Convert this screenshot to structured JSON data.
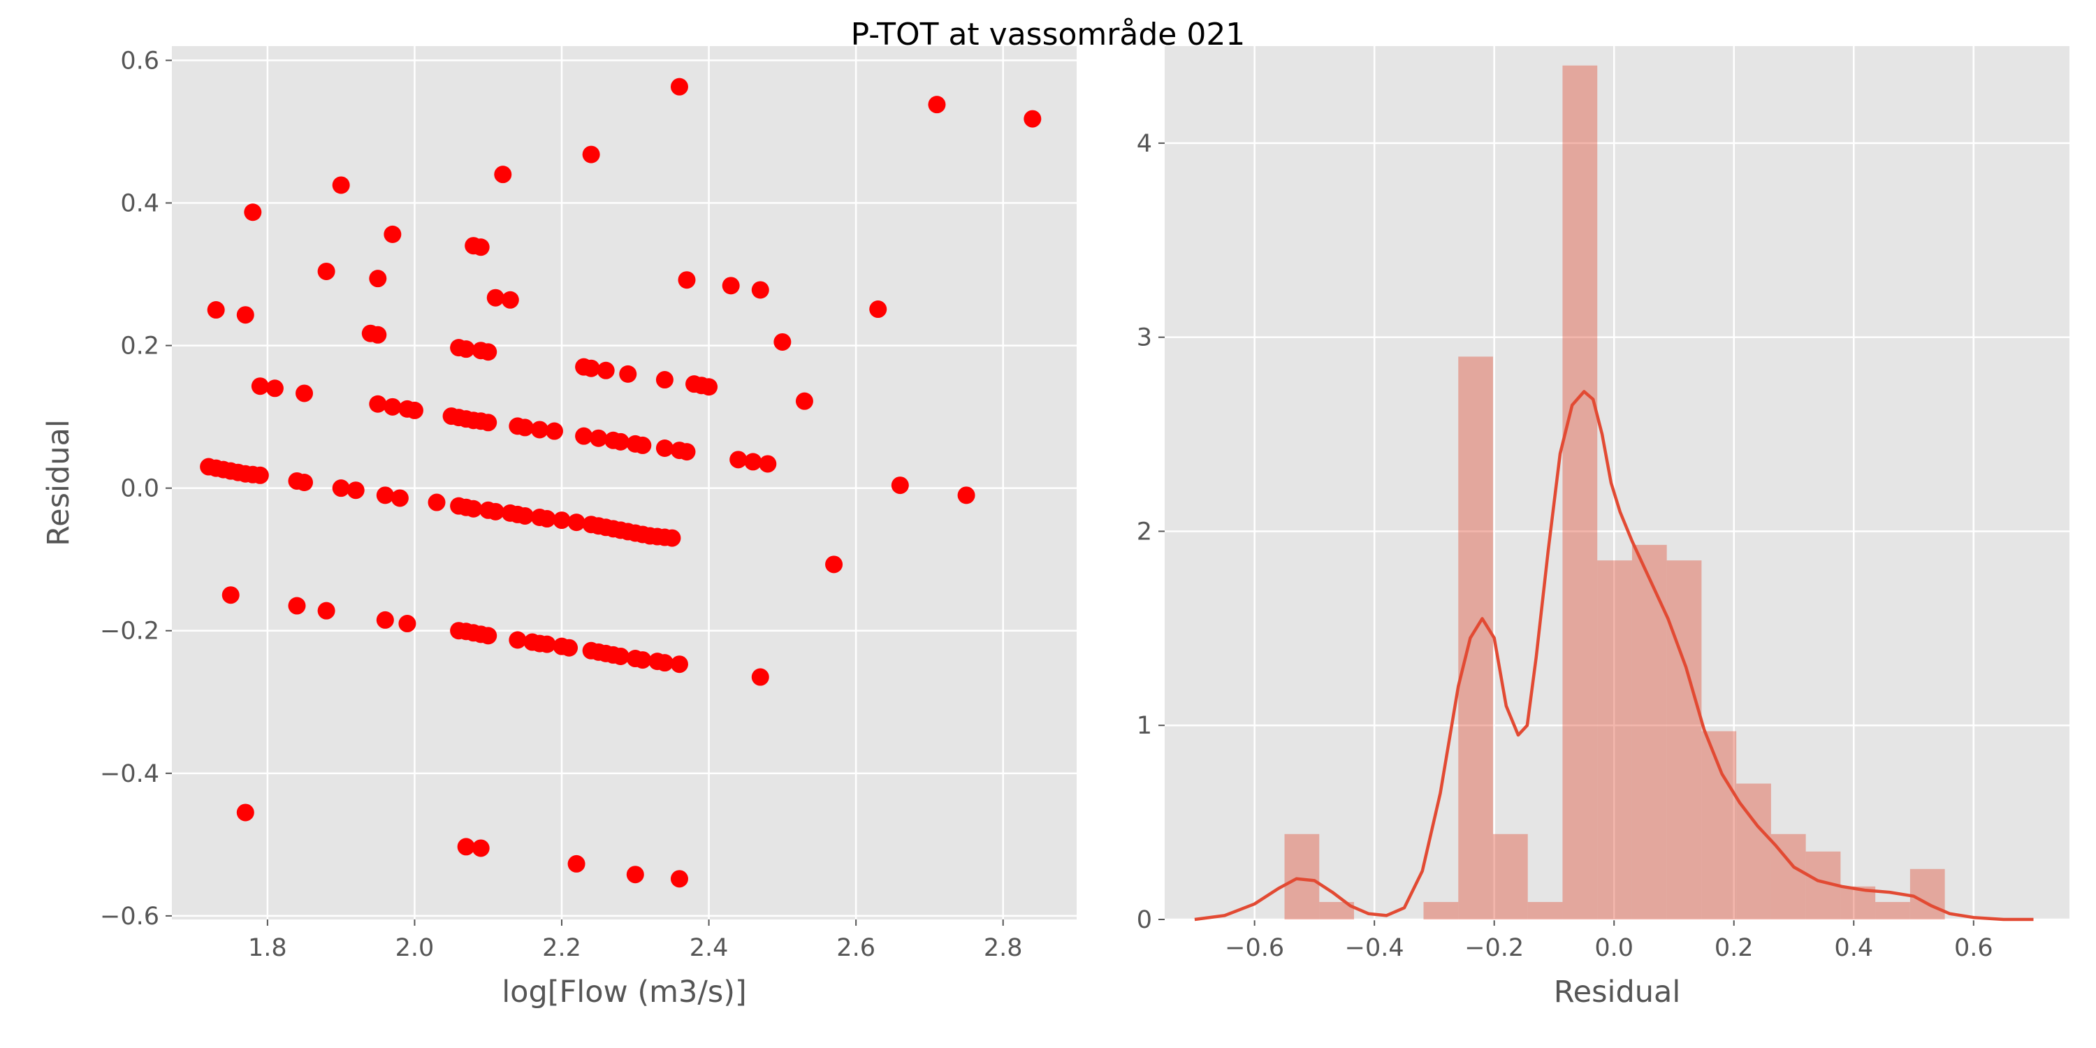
{
  "suptitle": "P-TOT at vassområde 021",
  "colors": {
    "panel_bg": "#E5E5E5",
    "grid": "#FFFFFF",
    "scatter_points": "#FF0000",
    "hist_bars": "#E24A33",
    "kde_line": "#E24A33",
    "tick_text": "#555555"
  },
  "chart_data": [
    {
      "type": "scatter",
      "xlabel": "log[Flow (m3/s)]",
      "ylabel": "Residual",
      "xlim": [
        1.67,
        2.9
      ],
      "ylim": [
        -0.605,
        0.62
      ],
      "xticks": [
        1.8,
        2.0,
        2.2,
        2.4,
        2.6,
        2.8
      ],
      "xtick_labels": [
        "1.8",
        "2.0",
        "2.2",
        "2.4",
        "2.6",
        "2.8"
      ],
      "yticks": [
        -0.6,
        -0.4,
        -0.2,
        0.0,
        0.2,
        0.4,
        0.6
      ],
      "ytick_labels": [
        "−0.6",
        "−0.4",
        "−0.2",
        "0.0",
        "0.2",
        "0.4",
        "0.6"
      ],
      "grid": true,
      "points": [
        [
          1.72,
          0.03
        ],
        [
          1.73,
          0.028
        ],
        [
          1.74,
          0.026
        ],
        [
          1.75,
          0.024
        ],
        [
          1.76,
          0.022
        ],
        [
          1.77,
          0.02
        ],
        [
          1.78,
          0.019
        ],
        [
          1.79,
          0.018
        ],
        [
          1.84,
          0.01
        ],
        [
          1.85,
          0.008
        ],
        [
          1.9,
          0.0
        ],
        [
          1.92,
          -0.003
        ],
        [
          1.96,
          -0.01
        ],
        [
          1.98,
          -0.014
        ],
        [
          2.03,
          -0.02
        ],
        [
          2.06,
          -0.025
        ],
        [
          2.07,
          -0.027
        ],
        [
          2.08,
          -0.029
        ],
        [
          2.1,
          -0.031
        ],
        [
          2.11,
          -0.033
        ],
        [
          2.13,
          -0.035
        ],
        [
          2.14,
          -0.037
        ],
        [
          2.15,
          -0.039
        ],
        [
          2.17,
          -0.041
        ],
        [
          2.18,
          -0.043
        ],
        [
          2.2,
          -0.045
        ],
        [
          2.22,
          -0.048
        ],
        [
          2.24,
          -0.051
        ],
        [
          2.25,
          -0.053
        ],
        [
          2.26,
          -0.055
        ],
        [
          2.27,
          -0.057
        ],
        [
          2.28,
          -0.059
        ],
        [
          2.29,
          -0.061
        ],
        [
          2.3,
          -0.063
        ],
        [
          2.31,
          -0.065
        ],
        [
          2.32,
          -0.067
        ],
        [
          2.33,
          -0.068
        ],
        [
          2.34,
          -0.069
        ],
        [
          2.35,
          -0.07
        ],
        [
          1.79,
          0.143
        ],
        [
          1.81,
          0.14
        ],
        [
          1.85,
          0.133
        ],
        [
          1.95,
          0.118
        ],
        [
          1.97,
          0.114
        ],
        [
          1.99,
          0.111
        ],
        [
          2.0,
          0.109
        ],
        [
          2.05,
          0.101
        ],
        [
          2.06,
          0.099
        ],
        [
          2.07,
          0.097
        ],
        [
          2.08,
          0.095
        ],
        [
          2.09,
          0.094
        ],
        [
          2.1,
          0.092
        ],
        [
          2.14,
          0.087
        ],
        [
          2.15,
          0.085
        ],
        [
          2.17,
          0.082
        ],
        [
          2.19,
          0.08
        ],
        [
          2.23,
          0.073
        ],
        [
          2.25,
          0.07
        ],
        [
          2.27,
          0.067
        ],
        [
          2.28,
          0.065
        ],
        [
          2.3,
          0.062
        ],
        [
          2.31,
          0.06
        ],
        [
          2.34,
          0.056
        ],
        [
          2.36,
          0.053
        ],
        [
          2.37,
          0.051
        ],
        [
          2.44,
          0.04
        ],
        [
          2.46,
          0.037
        ],
        [
          2.48,
          0.034
        ],
        [
          1.75,
          -0.15
        ],
        [
          1.84,
          -0.165
        ],
        [
          1.88,
          -0.172
        ],
        [
          1.96,
          -0.185
        ],
        [
          1.99,
          -0.19
        ],
        [
          2.06,
          -0.2
        ],
        [
          2.07,
          -0.201
        ],
        [
          2.08,
          -0.203
        ],
        [
          2.09,
          -0.205
        ],
        [
          2.1,
          -0.207
        ],
        [
          2.14,
          -0.213
        ],
        [
          2.16,
          -0.216
        ],
        [
          2.17,
          -0.218
        ],
        [
          2.18,
          -0.219
        ],
        [
          2.2,
          -0.222
        ],
        [
          2.21,
          -0.224
        ],
        [
          2.24,
          -0.228
        ],
        [
          2.25,
          -0.23
        ],
        [
          2.26,
          -0.232
        ],
        [
          2.27,
          -0.234
        ],
        [
          2.28,
          -0.236
        ],
        [
          2.3,
          -0.239
        ],
        [
          2.31,
          -0.241
        ],
        [
          2.33,
          -0.243
        ],
        [
          2.34,
          -0.245
        ],
        [
          2.36,
          -0.247
        ],
        [
          2.47,
          -0.265
        ],
        [
          2.06,
          0.197
        ],
        [
          2.07,
          0.195
        ],
        [
          2.09,
          0.193
        ],
        [
          2.1,
          0.191
        ],
        [
          2.23,
          0.17
        ],
        [
          2.24,
          0.168
        ],
        [
          2.26,
          0.165
        ],
        [
          2.29,
          0.16
        ],
        [
          2.34,
          0.152
        ],
        [
          2.38,
          0.146
        ],
        [
          2.39,
          0.144
        ],
        [
          2.4,
          0.142
        ],
        [
          1.73,
          0.25
        ],
        [
          1.77,
          0.243
        ],
        [
          1.94,
          0.217
        ],
        [
          1.95,
          0.215
        ],
        [
          2.11,
          0.267
        ],
        [
          2.13,
          0.264
        ],
        [
          1.78,
          0.387
        ],
        [
          1.88,
          0.304
        ],
        [
          1.9,
          0.425
        ],
        [
          1.95,
          0.294
        ],
        [
          1.97,
          0.356
        ],
        [
          2.08,
          0.34
        ],
        [
          2.09,
          0.338
        ],
        [
          2.12,
          0.44
        ],
        [
          2.24,
          0.468
        ],
        [
          2.36,
          0.563
        ],
        [
          2.37,
          0.292
        ],
        [
          2.43,
          0.284
        ],
        [
          2.47,
          0.278
        ],
        [
          2.5,
          0.205
        ],
        [
          2.53,
          0.122
        ],
        [
          2.63,
          0.251
        ],
        [
          2.66,
          0.004
        ],
        [
          2.71,
          0.538
        ],
        [
          2.75,
          -0.01
        ],
        [
          2.84,
          0.518
        ],
        [
          2.57,
          -0.107
        ],
        [
          1.77,
          -0.455
        ],
        [
          2.07,
          -0.503
        ],
        [
          2.09,
          -0.505
        ],
        [
          2.22,
          -0.527
        ],
        [
          2.3,
          -0.542
        ],
        [
          2.36,
          -0.548
        ]
      ]
    },
    {
      "type": "bar",
      "subtype": "histogram_with_kde",
      "xlabel": "Residual",
      "ylabel": "",
      "xlim": [
        -0.75,
        0.76
      ],
      "ylim": [
        0,
        4.5
      ],
      "xticks": [
        -0.6,
        -0.4,
        -0.2,
        0.0,
        0.2,
        0.4,
        0.6
      ],
      "xtick_labels": [
        "−0.6",
        "−0.4",
        "−0.2",
        "0.0",
        "0.2",
        "0.4",
        "0.6"
      ],
      "yticks": [
        0,
        1,
        2,
        3,
        4
      ],
      "ytick_labels": [
        "0",
        "1",
        "2",
        "3",
        "4"
      ],
      "grid": true,
      "bin_edges": [
        -0.55,
        -0.492,
        -0.434,
        -0.376,
        -0.318,
        -0.26,
        -0.202,
        -0.144,
        -0.086,
        -0.028,
        0.03,
        0.088,
        0.146,
        0.204,
        0.262,
        0.32,
        0.378,
        0.436,
        0.494,
        0.552
      ],
      "values": [
        0.44,
        0.09,
        0.0,
        0.0,
        0.09,
        2.9,
        0.44,
        0.09,
        4.4,
        1.85,
        1.93,
        1.85,
        0.97,
        0.7,
        0.44,
        0.35,
        0.17,
        0.09,
        0.26
      ],
      "kde": {
        "x": [
          -0.7,
          -0.65,
          -0.6,
          -0.56,
          -0.53,
          -0.5,
          -0.47,
          -0.44,
          -0.41,
          -0.38,
          -0.35,
          -0.32,
          -0.29,
          -0.26,
          -0.24,
          -0.22,
          -0.2,
          -0.18,
          -0.16,
          -0.145,
          -0.13,
          -0.11,
          -0.09,
          -0.07,
          -0.05,
          -0.035,
          -0.02,
          -0.005,
          0.01,
          0.03,
          0.06,
          0.09,
          0.12,
          0.15,
          0.18,
          0.21,
          0.24,
          0.27,
          0.3,
          0.34,
          0.38,
          0.42,
          0.46,
          0.5,
          0.53,
          0.56,
          0.6,
          0.65,
          0.7
        ],
        "y": [
          0.0,
          0.02,
          0.08,
          0.16,
          0.21,
          0.2,
          0.14,
          0.07,
          0.03,
          0.02,
          0.06,
          0.25,
          0.65,
          1.2,
          1.45,
          1.55,
          1.45,
          1.1,
          0.95,
          1.0,
          1.35,
          1.9,
          2.4,
          2.65,
          2.72,
          2.68,
          2.5,
          2.25,
          2.1,
          1.95,
          1.75,
          1.55,
          1.3,
          0.98,
          0.75,
          0.6,
          0.48,
          0.38,
          0.27,
          0.2,
          0.17,
          0.15,
          0.14,
          0.12,
          0.07,
          0.03,
          0.01,
          0.0,
          0.0
        ]
      }
    }
  ]
}
